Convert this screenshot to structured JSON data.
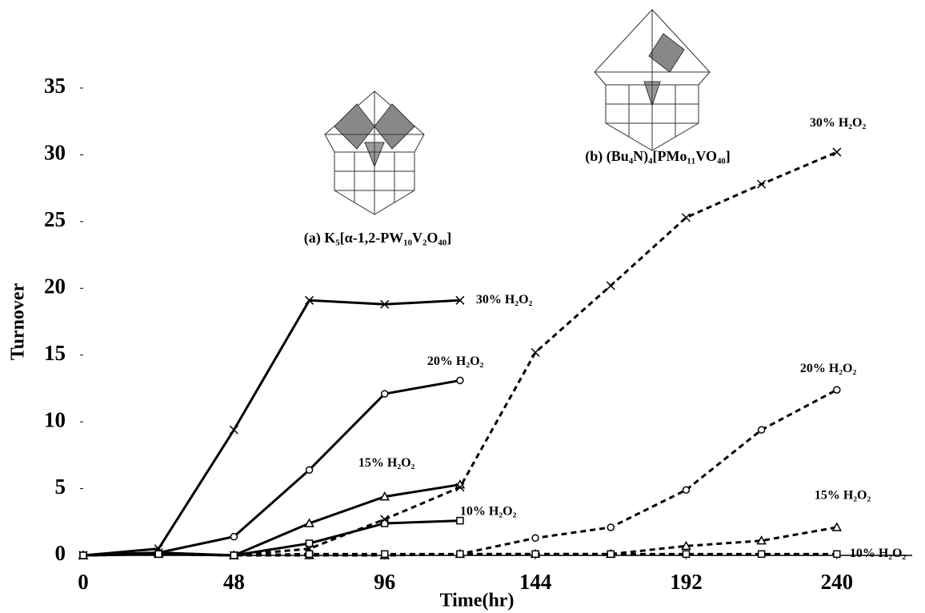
{
  "chart_data": {
    "type": "line",
    "x_label": "Time(hr)",
    "y_label": "Turnover",
    "xlim": [
      0,
      264
    ],
    "xticks": [
      0,
      48,
      96,
      144,
      192,
      240
    ],
    "ylim": [
      0,
      35
    ],
    "yticks": [
      0,
      5,
      10,
      15,
      20,
      25,
      30,
      35
    ],
    "annotations": [
      "(a) K₅[α-1,2-PW₁₀V₂O₄₀]",
      "(b) (Bu₄N)₄[PMo₁₁VO₄₀]"
    ],
    "series": [
      {
        "name": "30% H₂O₂",
        "color": "#000000",
        "style": "solid",
        "marker": "x",
        "x": [
          0,
          24,
          48,
          72,
          96,
          120
        ],
        "values": [
          0,
          0.5,
          9.4,
          19.1,
          18.8,
          19.1
        ]
      },
      {
        "name": "20% H₂O₂",
        "color": "#000000",
        "style": "solid",
        "marker": "circle",
        "x": [
          0,
          24,
          48,
          72,
          96,
          120
        ],
        "values": [
          0,
          0.2,
          1.4,
          6.4,
          12.1,
          13.1
        ]
      },
      {
        "name": "15% H₂O₂",
        "color": "#000000",
        "style": "solid",
        "marker": "triangle",
        "x": [
          0,
          24,
          48,
          72,
          96,
          120
        ],
        "values": [
          0,
          0.2,
          0,
          2.4,
          4.4,
          5.3
        ]
      },
      {
        "name": "10% H₂O₂",
        "color": "#000000",
        "style": "solid",
        "marker": "square",
        "x": [
          0,
          24,
          48,
          72,
          96,
          120
        ],
        "values": [
          0,
          0.1,
          0,
          0.9,
          2.4,
          2.6
        ]
      },
      {
        "name": "30% H₂O₂",
        "color": "#000000",
        "style": "dashed",
        "marker": "x",
        "x": [
          0,
          24,
          48,
          72,
          96,
          120,
          144,
          168,
          192,
          216,
          240
        ],
        "values": [
          0,
          0.2,
          0,
          0.5,
          2.7,
          5.1,
          15.2,
          20.2,
          25.3,
          27.8,
          30.2
        ]
      },
      {
        "name": "20% H₂O₂",
        "color": "#000000",
        "style": "dashed",
        "marker": "circle",
        "x": [
          0,
          24,
          48,
          72,
          96,
          120,
          144,
          168,
          192,
          216,
          240
        ],
        "values": [
          0,
          0.1,
          0,
          0,
          0,
          0.1,
          1.3,
          2.1,
          4.9,
          9.4,
          12.4
        ]
      },
      {
        "name": "15% H₂O₂",
        "color": "#000000",
        "style": "dashed",
        "marker": "triangle",
        "x": [
          0,
          24,
          48,
          72,
          96,
          120,
          144,
          168,
          192,
          216,
          240
        ],
        "values": [
          0,
          0.1,
          0,
          0,
          0,
          0.1,
          0.1,
          0.1,
          0.7,
          1.1,
          2.1
        ]
      },
      {
        "name": "10% H₂O₂",
        "color": "#000000",
        "style": "dashed",
        "marker": "square",
        "x": [
          0,
          24,
          48,
          72,
          96,
          120,
          144,
          168,
          192,
          216,
          240
        ],
        "values": [
          0,
          0.1,
          0,
          0.1,
          0.1,
          0.1,
          0.1,
          0.1,
          0.1,
          0.1,
          0.1
        ]
      }
    ]
  }
}
